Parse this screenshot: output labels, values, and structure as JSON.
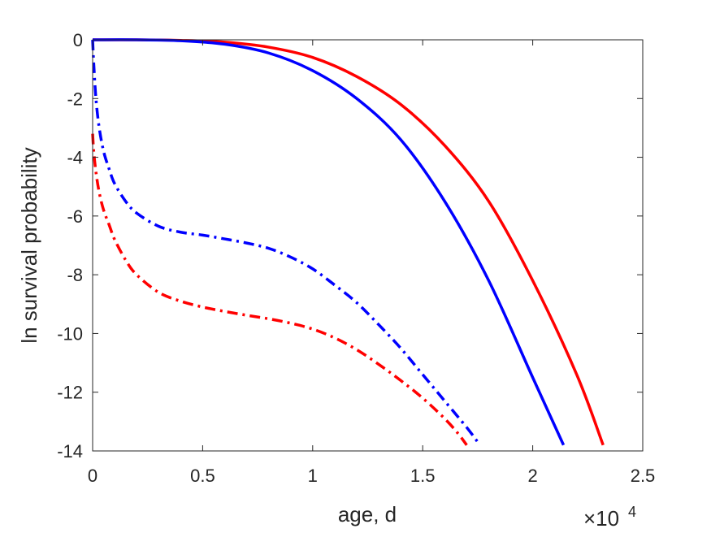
{
  "chart_data": {
    "type": "line",
    "xlabel": "age, d",
    "ylabel": "ln survival probability",
    "x_exponent_label": {
      "base": "×10",
      "power": "4"
    },
    "xlim": [
      0,
      25000
    ],
    "ylim": [
      -14,
      0
    ],
    "xticks": [
      0,
      5000,
      10000,
      15000,
      20000,
      25000
    ],
    "xtick_labels": [
      "0",
      "0.5",
      "1",
      "1.5",
      "2",
      "2.5"
    ],
    "yticks": [
      0,
      -2,
      -4,
      -6,
      -8,
      -10,
      -12,
      -14
    ],
    "ytick_labels": [
      "0",
      "-2",
      "-4",
      "-6",
      "-8",
      "-10",
      "-12",
      "-14"
    ],
    "grid": false,
    "series": [
      {
        "color": "#ff0000",
        "style": "solid",
        "x": [
          0,
          2000,
          4000,
          6000,
          8000,
          10000,
          12000,
          14000,
          16000,
          18000,
          20000,
          22000,
          23200
        ],
        "y": [
          0,
          0,
          -0.02,
          -0.08,
          -0.25,
          -0.6,
          -1.25,
          -2.2,
          -3.6,
          -5.5,
          -8.2,
          -11.4,
          -13.8
        ]
      },
      {
        "color": "#0000ff",
        "style": "solid",
        "x": [
          0,
          2000,
          4000,
          6000,
          8000,
          10000,
          12000,
          14000,
          16000,
          18000,
          20000,
          21400
        ],
        "y": [
          0,
          0,
          -0.03,
          -0.15,
          -0.45,
          -1.05,
          -2.0,
          -3.4,
          -5.5,
          -8.2,
          -11.5,
          -13.8
        ]
      },
      {
        "color": "#0000ff",
        "style": "dashdot",
        "x": [
          0,
          50,
          150,
          300,
          500,
          750,
          1000,
          1500,
          2000,
          3000,
          4000,
          5000,
          6000,
          7000,
          8000,
          9000,
          10000,
          11000,
          12000,
          13000,
          14000,
          15000,
          16000,
          17000,
          17600
        ],
        "y": [
          0,
          -0.8,
          -2.0,
          -3.0,
          -3.8,
          -4.4,
          -4.9,
          -5.5,
          -5.9,
          -6.35,
          -6.55,
          -6.65,
          -6.78,
          -6.92,
          -7.1,
          -7.4,
          -7.8,
          -8.35,
          -8.95,
          -9.7,
          -10.5,
          -11.4,
          -12.3,
          -13.2,
          -13.8
        ]
      },
      {
        "color": "#ff0000",
        "style": "dashdot",
        "x": [
          0,
          50,
          150,
          300,
          500,
          750,
          1000,
          1500,
          2000,
          3000,
          4000,
          5000,
          6000,
          7000,
          8000,
          9000,
          10000,
          11000,
          12000,
          13000,
          14000,
          15000,
          16000,
          16600,
          17000
        ],
        "y": [
          -3.2,
          -3.8,
          -4.5,
          -5.2,
          -5.8,
          -6.3,
          -6.8,
          -7.5,
          -8.0,
          -8.6,
          -8.9,
          -9.1,
          -9.25,
          -9.38,
          -9.5,
          -9.65,
          -9.85,
          -10.15,
          -10.55,
          -11.05,
          -11.6,
          -12.2,
          -12.9,
          -13.4,
          -13.8
        ]
      }
    ]
  }
}
